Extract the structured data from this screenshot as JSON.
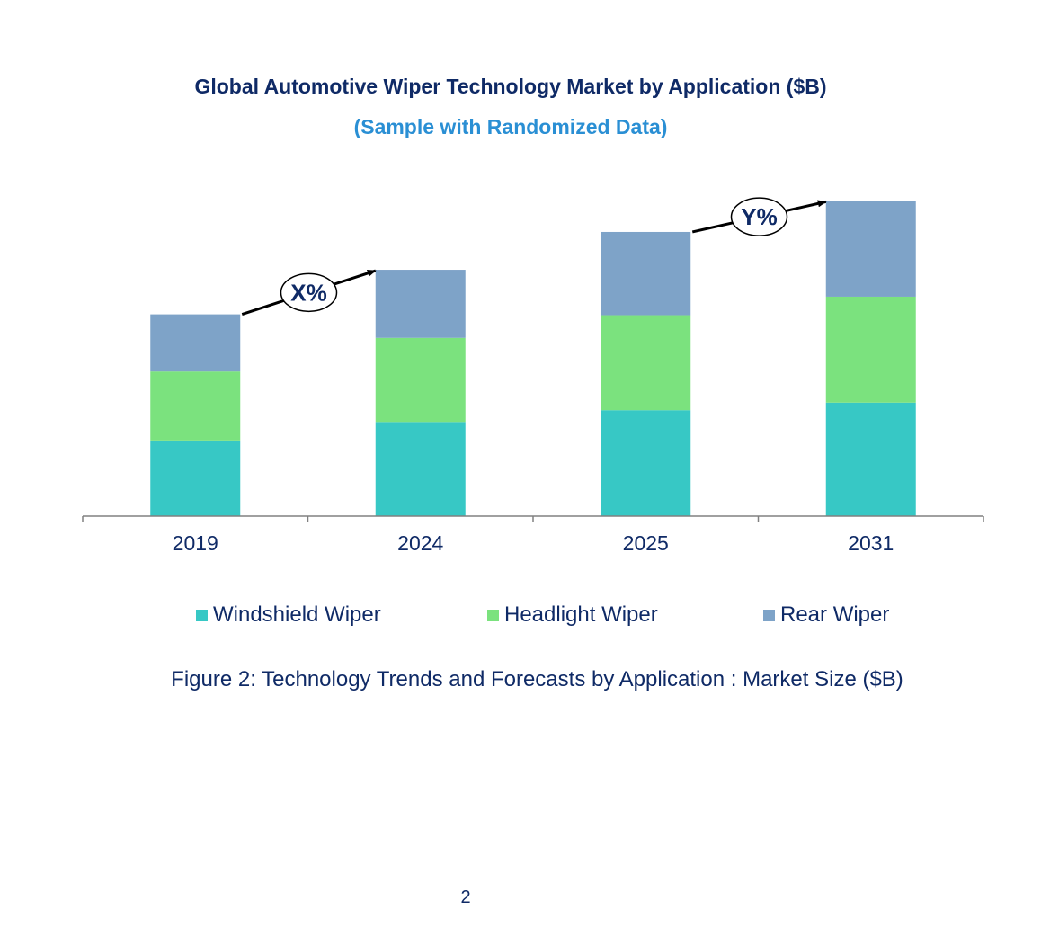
{
  "chart_data": {
    "type": "bar",
    "stacked": true,
    "title": "Global Automotive Wiper Technology Market by Application ($B)",
    "subtitle": "(Sample with Randomized Data)",
    "categories": [
      "2019",
      "2024",
      "2025",
      "2031"
    ],
    "series": [
      {
        "name": "Windshield Wiper",
        "values": [
          9.0,
          11.2,
          12.6,
          13.5
        ],
        "color": "#37c8c5"
      },
      {
        "name": "Headlight Wiper",
        "values": [
          8.2,
          10.0,
          11.3,
          12.6
        ],
        "color": "#7be27e"
      },
      {
        "name": "Rear Wiper",
        "values": [
          6.8,
          8.1,
          9.9,
          11.4
        ],
        "color": "#7ea3c8"
      }
    ],
    "ylim": [
      0,
      40
    ],
    "grid": false,
    "legend_position": "bottom",
    "annotations": [
      {
        "label": "X%",
        "from": "2019",
        "to": "2024"
      },
      {
        "label": "Y%",
        "from": "2025",
        "to": "2031"
      }
    ]
  },
  "caption": "Figure 2: Technology Trends and Forecasts by Application : Market Size ($B)",
  "page_number": "2",
  "colors": {
    "title": "#0f2a66",
    "subtitle": "#2a8fd4",
    "axis": "#808080"
  }
}
